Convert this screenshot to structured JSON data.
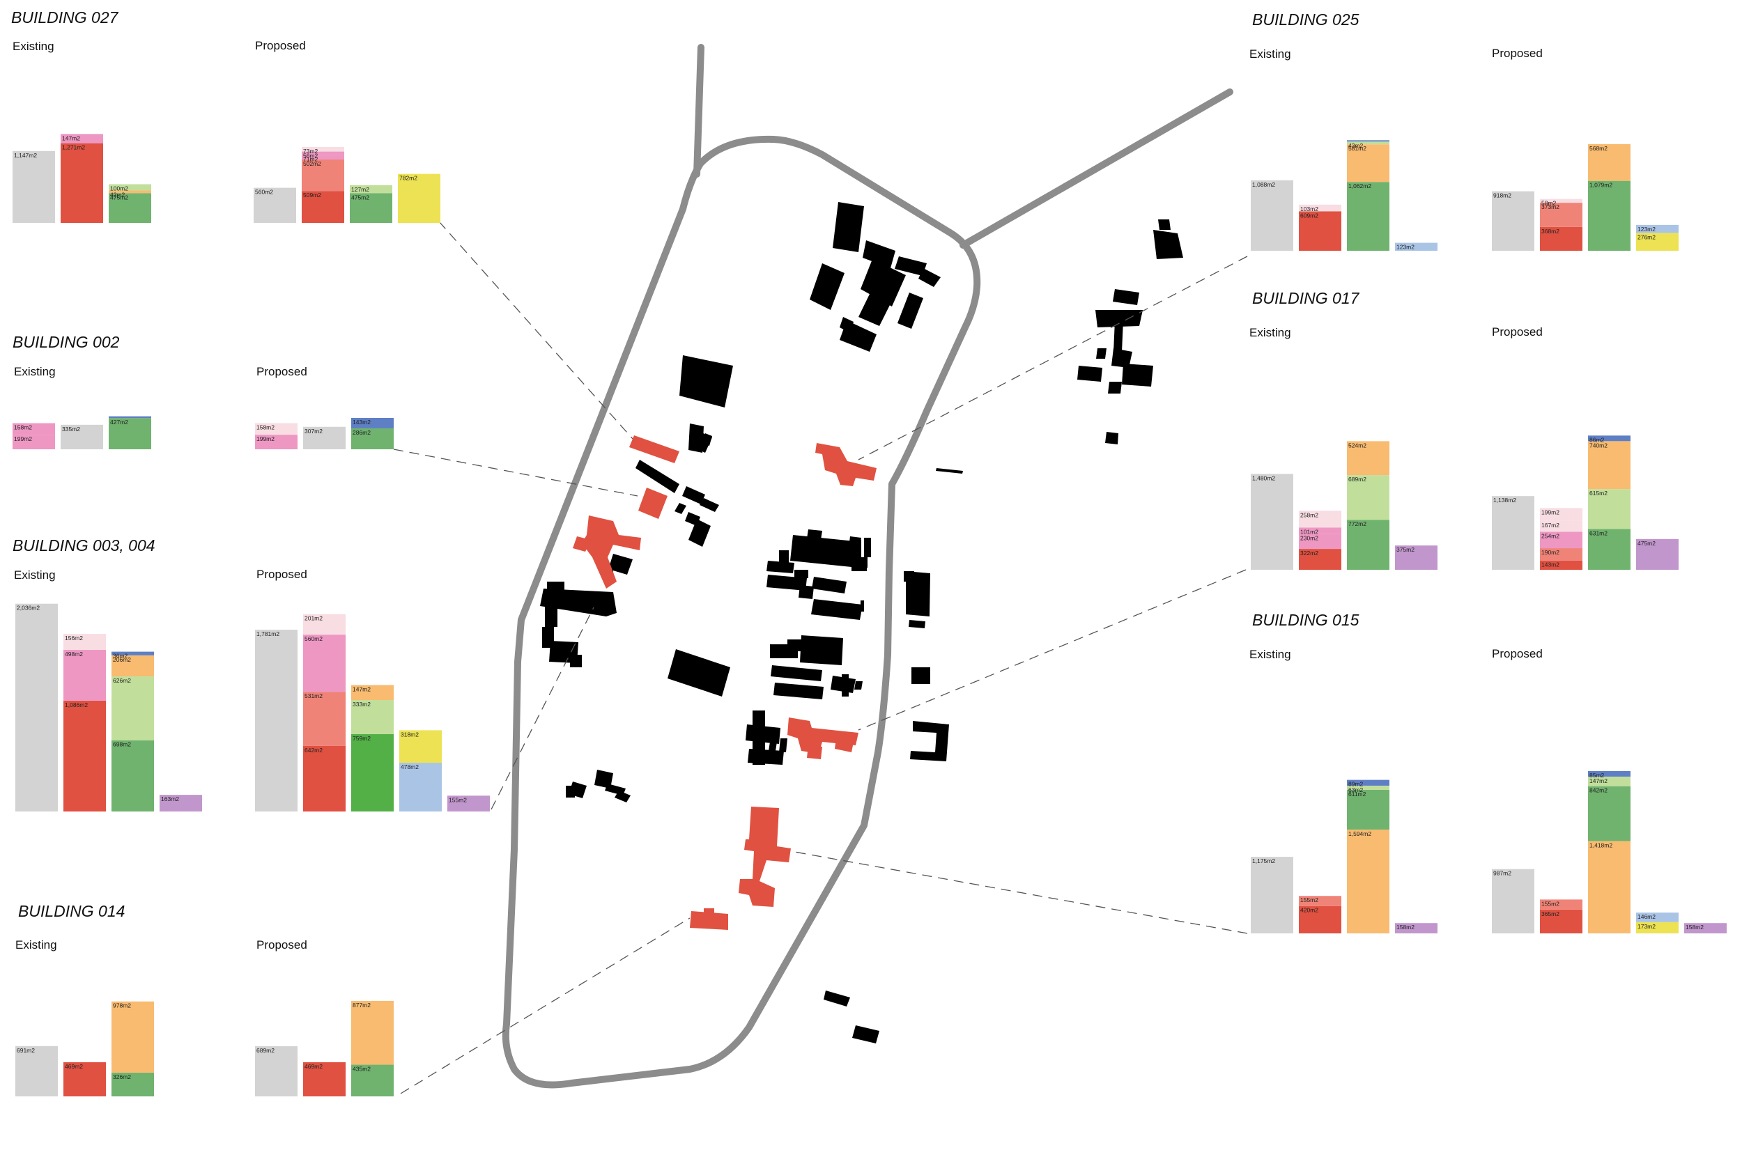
{
  "labels": {
    "existing": "Existing",
    "proposed": "Proposed"
  },
  "colors": {
    "grey": "#d3d3d3",
    "red": "#e05141",
    "salmon": "#f08377",
    "pink": "#ee97c3",
    "lightpink": "#f8dde3",
    "orange": "#f8bb70",
    "lightgreen": "#c1df9b",
    "green": "#6fb36e",
    "brightgreen": "#52b047",
    "blue": "#5f7fc4",
    "lightblue": "#aac4e6",
    "yellow": "#ece253",
    "purple": "#c196cc",
    "building": "#000000",
    "highlight": "#e05141",
    "road": "#8c8c8c",
    "leader": "#555555"
  },
  "chart_data": [
    {
      "type": "bar",
      "stacked": true,
      "title": "BUILDING 027",
      "ylabel": "",
      "xlabel": "",
      "panels": [
        {
          "label": "Existing",
          "bars": [
            [
              {
                "value": 1147,
                "label": "1,147m2",
                "color": "grey"
              }
            ],
            [
              {
                "value": 1271,
                "label": "1,271m2",
                "color": "red"
              },
              {
                "value": 147,
                "label": "147m2",
                "color": "pink"
              }
            ],
            [
              {
                "value": 475,
                "label": "475m2",
                "color": "green"
              },
              {
                "value": 42,
                "label": "42m2",
                "color": "orange"
              },
              {
                "value": 100,
                "label": "100m2",
                "color": "lightgreen"
              }
            ]
          ]
        },
        {
          "label": "Proposed",
          "bars": [
            [
              {
                "value": 560,
                "label": "560m2",
                "color": "grey"
              }
            ],
            [
              {
                "value": 509,
                "label": "509m2",
                "color": "red"
              },
              {
                "value": 502,
                "label": "502m2",
                "color": "salmon"
              },
              {
                "value": 71,
                "label": "71m2",
                "color": "pink"
              },
              {
                "value": 56,
                "label": "56m2",
                "color": "pink"
              },
              {
                "value": 73,
                "label": "73m2",
                "color": "lightpink"
              }
            ],
            [
              {
                "value": 475,
                "label": "475m2",
                "color": "green"
              },
              {
                "value": 127,
                "label": "127m2",
                "color": "lightgreen"
              }
            ],
            [
              {
                "value": 782,
                "label": "782m2",
                "color": "yellow"
              }
            ]
          ]
        }
      ]
    },
    {
      "type": "bar",
      "stacked": true,
      "title": "BUILDING 002",
      "ylabel": "",
      "xlabel": "",
      "panels": [
        {
          "label": "Existing",
          "bars": [
            [
              {
                "value": 199,
                "label": "199m2",
                "color": "pink"
              },
              {
                "value": 158,
                "label": "158m2",
                "color": "pink"
              }
            ],
            [
              {
                "value": 335,
                "label": "335m2",
                "color": "grey"
              }
            ],
            [
              {
                "value": 427,
                "label": "427m2",
                "color": "green"
              },
              {
                "value": 0,
                "label": "",
                "color": "blue"
              }
            ]
          ]
        },
        {
          "label": "Proposed",
          "bars": [
            [
              {
                "value": 199,
                "label": "199m2",
                "color": "pink"
              },
              {
                "value": 158,
                "label": "158m2",
                "color": "lightpink"
              }
            ],
            [
              {
                "value": 307,
                "label": "307m2",
                "color": "grey"
              }
            ],
            [
              {
                "value": 286,
                "label": "286m2",
                "color": "green"
              },
              {
                "value": 143,
                "label": "143m2",
                "color": "blue"
              }
            ]
          ]
        }
      ]
    },
    {
      "type": "bar",
      "stacked": true,
      "title": "BUILDING 003, 004",
      "ylabel": "",
      "xlabel": "",
      "panels": [
        {
          "label": "Existing",
          "bars": [
            [
              {
                "value": 2036,
                "label": "2,036m2",
                "color": "grey"
              }
            ],
            [
              {
                "value": 1086,
                "label": "1,086m2",
                "color": "red"
              },
              {
                "value": 498,
                "label": "498m2",
                "color": "pink"
              },
              {
                "value": 156,
                "label": "156m2",
                "color": "lightpink"
              }
            ],
            [
              {
                "value": 698,
                "label": "698m2",
                "color": "green"
              },
              {
                "value": 626,
                "label": "626m2",
                "color": "lightgreen"
              },
              {
                "value": 206,
                "label": "206m2",
                "color": "orange"
              },
              {
                "value": 36,
                "label": "36m2",
                "color": "blue"
              }
            ],
            [
              {
                "value": 163,
                "label": "163m2",
                "color": "purple"
              }
            ]
          ]
        },
        {
          "label": "Proposed",
          "bars": [
            [
              {
                "value": 1781,
                "label": "1,781m2",
                "color": "grey"
              }
            ],
            [
              {
                "value": 642,
                "label": "642m2",
                "color": "red"
              },
              {
                "value": 531,
                "label": "531m2",
                "color": "salmon"
              },
              {
                "value": 560,
                "label": "560m2",
                "color": "pink"
              },
              {
                "value": 201,
                "label": "201m2",
                "color": "lightpink"
              }
            ],
            [
              {
                "value": 759,
                "label": "759m2",
                "color": "brightgreen"
              },
              {
                "value": 333,
                "label": "333m2",
                "color": "lightgreen"
              },
              {
                "value": 147,
                "label": "147m2",
                "color": "orange"
              }
            ],
            [
              {
                "value": 478,
                "label": "478m2",
                "color": "lightblue"
              },
              {
                "value": 318,
                "label": "318m2",
                "color": "yellow"
              }
            ],
            [
              {
                "value": 155,
                "label": "155m2",
                "color": "purple"
              }
            ]
          ]
        }
      ]
    },
    {
      "type": "bar",
      "stacked": true,
      "title": "BUILDING 014",
      "ylabel": "",
      "xlabel": "",
      "panels": [
        {
          "label": "Existing",
          "bars": [
            [
              {
                "value": 691,
                "label": "691m2",
                "color": "grey"
              }
            ],
            [
              {
                "value": 469,
                "label": "469m2",
                "color": "red"
              }
            ],
            [
              {
                "value": 326,
                "label": "326m2",
                "color": "green"
              },
              {
                "value": 978,
                "label": "978m2",
                "color": "orange"
              }
            ]
          ]
        },
        {
          "label": "Proposed",
          "bars": [
            [
              {
                "value": 689,
                "label": "689m2",
                "color": "grey"
              }
            ],
            [
              {
                "value": 469,
                "label": "469m2",
                "color": "red"
              }
            ],
            [
              {
                "value": 435,
                "label": "435m2",
                "color": "green"
              },
              {
                "value": 877,
                "label": "877m2",
                "color": "orange"
              }
            ]
          ]
        }
      ]
    },
    {
      "type": "bar",
      "stacked": true,
      "title": "BUILDING 025",
      "ylabel": "",
      "xlabel": "",
      "panels": [
        {
          "label": "Existing",
          "bars": [
            [
              {
                "value": 1088,
                "label": "1,088m2",
                "color": "grey"
              }
            ],
            [
              {
                "value": 609,
                "label": "609m2",
                "color": "red"
              },
              {
                "value": 103,
                "label": "103m2",
                "color": "lightpink"
              }
            ],
            [
              {
                "value": 1062,
                "label": "1,062m2",
                "color": "green"
              },
              {
                "value": 581,
                "label": "581m2",
                "color": "orange"
              },
              {
                "value": 43,
                "label": "43m2",
                "color": "lightgreen"
              },
              {
                "value": 20,
                "label": "",
                "color": "blue"
              }
            ],
            [
              {
                "value": 123,
                "label": "123m2",
                "color": "lightblue"
              }
            ]
          ]
        },
        {
          "label": "Proposed",
          "bars": [
            [
              {
                "value": 918,
                "label": "918m2",
                "color": "grey"
              }
            ],
            [
              {
                "value": 368,
                "label": "368m2",
                "color": "red"
              },
              {
                "value": 373,
                "label": "373m2",
                "color": "salmon"
              },
              {
                "value": 58,
                "label": "58m2",
                "color": "lightpink"
              }
            ],
            [
              {
                "value": 1079,
                "label": "1,079m2",
                "color": "green"
              },
              {
                "value": 568,
                "label": "568m2",
                "color": "orange"
              }
            ],
            [
              {
                "value": 276,
                "label": "276m2",
                "color": "yellow"
              },
              {
                "value": 123,
                "label": "123m2",
                "color": "lightblue"
              }
            ]
          ]
        }
      ]
    },
    {
      "type": "bar",
      "stacked": true,
      "title": "BUILDING 017",
      "ylabel": "",
      "xlabel": "",
      "panels": [
        {
          "label": "Existing",
          "bars": [
            [
              {
                "value": 1480,
                "label": "1,480m2",
                "color": "grey"
              }
            ],
            [
              {
                "value": 322,
                "label": "322m2",
                "color": "red"
              },
              {
                "value": 230,
                "label": "230m2",
                "color": "pink"
              },
              {
                "value": 101,
                "label": "101m2",
                "color": "pink"
              },
              {
                "value": 258,
                "label": "258m2",
                "color": "lightpink"
              }
            ],
            [
              {
                "value": 772,
                "label": "772m2",
                "color": "green"
              },
              {
                "value": 689,
                "label": "689m2",
                "color": "lightgreen"
              },
              {
                "value": 524,
                "label": "524m2",
                "color": "orange"
              }
            ],
            [
              {
                "value": 375,
                "label": "375m2",
                "color": "purple"
              }
            ]
          ]
        },
        {
          "label": "Proposed",
          "bars": [
            [
              {
                "value": 1138,
                "label": "1,138m2",
                "color": "grey"
              }
            ],
            [
              {
                "value": 143,
                "label": "143m2",
                "color": "red"
              },
              {
                "value": 190,
                "label": "190m2",
                "color": "salmon"
              },
              {
                "value": 254,
                "label": "254m2",
                "color": "pink"
              },
              {
                "value": 167,
                "label": "167m2",
                "color": "lightpink"
              },
              {
                "value": 199,
                "label": "199m2",
                "color": "lightpink"
              }
            ],
            [
              {
                "value": 631,
                "label": "631m2",
                "color": "green"
              },
              {
                "value": 615,
                "label": "615m2",
                "color": "lightgreen"
              },
              {
                "value": 740,
                "label": "740m2",
                "color": "orange"
              },
              {
                "value": 86,
                "label": "86m2",
                "color": "blue"
              }
            ],
            [
              {
                "value": 475,
                "label": "475m2",
                "color": "purple"
              }
            ]
          ]
        }
      ]
    },
    {
      "type": "bar",
      "stacked": true,
      "title": "BUILDING 015",
      "ylabel": "",
      "xlabel": "",
      "panels": [
        {
          "label": "Existing",
          "bars": [
            [
              {
                "value": 1175,
                "label": "1,175m2",
                "color": "grey"
              }
            ],
            [
              {
                "value": 420,
                "label": "420m2",
                "color": "red"
              },
              {
                "value": 155,
                "label": "155m2",
                "color": "salmon"
              }
            ],
            [
              {
                "value": 1594,
                "label": "1,594m2",
                "color": "orange"
              },
              {
                "value": 611,
                "label": "611m2",
                "color": "green"
              },
              {
                "value": 63,
                "label": "63m2",
                "color": "lightgreen"
              },
              {
                "value": 89,
                "label": "89m2",
                "color": "blue"
              }
            ],
            [
              {
                "value": 158,
                "label": "158m2",
                "color": "purple"
              }
            ]
          ]
        },
        {
          "label": "Proposed",
          "bars": [
            [
              {
                "value": 987,
                "label": "987m2",
                "color": "grey"
              }
            ],
            [
              {
                "value": 365,
                "label": "365m2",
                "color": "red"
              },
              {
                "value": 155,
                "label": "155m2",
                "color": "salmon"
              }
            ],
            [
              {
                "value": 1418,
                "label": "1,418m2",
                "color": "orange"
              },
              {
                "value": 842,
                "label": "842m2",
                "color": "green"
              },
              {
                "value": 147,
                "label": "147m2",
                "color": "lightgreen"
              },
              {
                "value": 85,
                "label": "85m2",
                "color": "blue"
              }
            ],
            [
              {
                "value": 173,
                "label": "173m2",
                "color": "yellow"
              },
              {
                "value": 146,
                "label": "146m2",
                "color": "lightblue"
              }
            ],
            [
              {
                "value": 158,
                "label": "158m2",
                "color": "purple"
              }
            ]
          ]
        }
      ]
    }
  ]
}
